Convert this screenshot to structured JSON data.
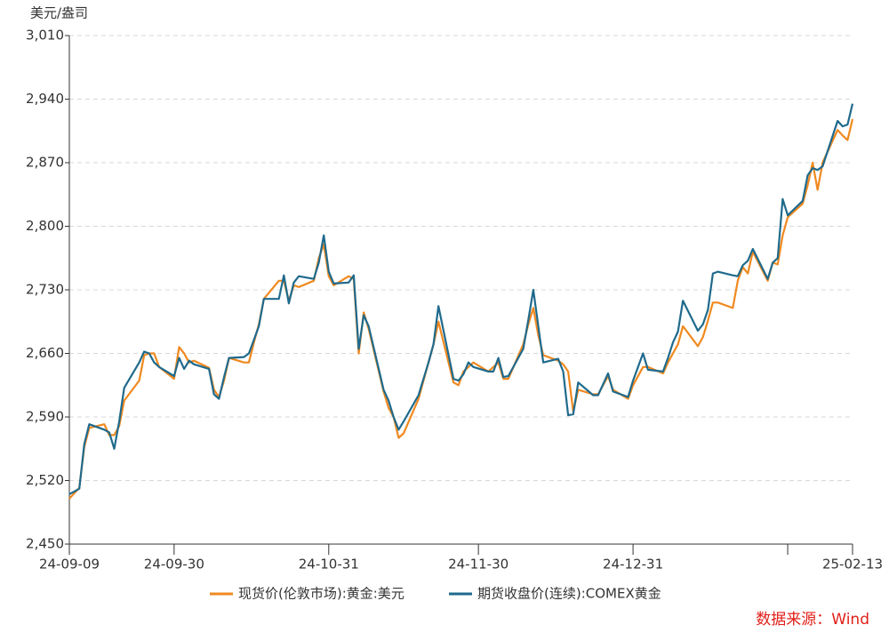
{
  "chart_data": {
    "type": "line",
    "y_unit": "美元/盎司",
    "source": "数据来源：Wind",
    "x": [
      "2024-09-09",
      "2024-09-10",
      "2024-09-11",
      "2024-09-12",
      "2024-09-13",
      "2024-09-16",
      "2024-09-17",
      "2024-09-18",
      "2024-09-19",
      "2024-09-20",
      "2024-09-23",
      "2024-09-24",
      "2024-09-25",
      "2024-09-26",
      "2024-09-27",
      "2024-09-30",
      "2024-10-01",
      "2024-10-02",
      "2024-10-03",
      "2024-10-04",
      "2024-10-07",
      "2024-10-08",
      "2024-10-09",
      "2024-10-10",
      "2024-10-11",
      "2024-10-14",
      "2024-10-15",
      "2024-10-16",
      "2024-10-17",
      "2024-10-18",
      "2024-10-21",
      "2024-10-22",
      "2024-10-23",
      "2024-10-24",
      "2024-10-25",
      "2024-10-28",
      "2024-10-29",
      "2024-10-30",
      "2024-10-31",
      "2024-11-01",
      "2024-11-04",
      "2024-11-05",
      "2024-11-06",
      "2024-11-07",
      "2024-11-08",
      "2024-11-11",
      "2024-11-12",
      "2024-11-13",
      "2024-11-14",
      "2024-11-15",
      "2024-11-18",
      "2024-11-19",
      "2024-11-20",
      "2024-11-21",
      "2024-11-22",
      "2024-11-25",
      "2024-11-26",
      "2024-11-27",
      "2024-11-28",
      "2024-11-29",
      "2024-12-02",
      "2024-12-03",
      "2024-12-04",
      "2024-12-05",
      "2024-12-06",
      "2024-12-09",
      "2024-12-10",
      "2024-12-11",
      "2024-12-12",
      "2024-12-13",
      "2024-12-16",
      "2024-12-17",
      "2024-12-18",
      "2024-12-19",
      "2024-12-20",
      "2024-12-23",
      "2024-12-24",
      "2024-12-26",
      "2024-12-27",
      "2024-12-30",
      "2024-12-31",
      "2025-01-02",
      "2025-01-03",
      "2025-01-06",
      "2025-01-07",
      "2025-01-08",
      "2025-01-09",
      "2025-01-10",
      "2025-01-13",
      "2025-01-14",
      "2025-01-15",
      "2025-01-16",
      "2025-01-17",
      "2025-01-20",
      "2025-01-21",
      "2025-01-22",
      "2025-01-23",
      "2025-01-24",
      "2025-01-27",
      "2025-01-28",
      "2025-01-29",
      "2025-01-30",
      "2025-01-31",
      "2025-02-03",
      "2025-02-04",
      "2025-02-05",
      "2025-02-06",
      "2025-02-07",
      "2025-02-10",
      "2025-02-11",
      "2025-02-12",
      "2025-02-13"
    ],
    "series": [
      {
        "name": "现货价(伦敦市场):黄金:美元",
        "color": "#f0891f",
        "values": [
          2500,
          2506,
          2512,
          2557,
          2578,
          2582,
          2570,
          2570,
          2580,
          2608,
          2630,
          2658,
          2660,
          2660,
          2645,
          2632,
          2667,
          2660,
          2650,
          2652,
          2644,
          2620,
          2612,
          2630,
          2655,
          2650,
          2650,
          2672,
          2692,
          2720,
          2740,
          2740,
          2718,
          2735,
          2733,
          2740,
          2765,
          2780,
          2745,
          2735,
          2745,
          2742,
          2660,
          2705,
          2687,
          2618,
          2600,
          2590,
          2567,
          2572,
          2610,
          2630,
          2650,
          2670,
          2695,
          2628,
          2625,
          2640,
          2645,
          2650,
          2640,
          2645,
          2650,
          2632,
          2632,
          2670,
          2692,
          2710,
          2680,
          2658,
          2652,
          2648,
          2640,
          2596,
          2620,
          2615,
          2615,
          2635,
          2620,
          2610,
          2625,
          2645,
          2645,
          2638,
          2650,
          2660,
          2670,
          2690,
          2668,
          2678,
          2696,
          2716,
          2716,
          2710,
          2740,
          2755,
          2748,
          2772,
          2740,
          2760,
          2758,
          2790,
          2810,
          2825,
          2845,
          2870,
          2840,
          2870,
          2906,
          2900,
          2895,
          2918
        ]
      },
      {
        "name": "期货收盘价(连续):COMEX黄金",
        "color": "#1f6a8c",
        "values": [
          2505,
          2508,
          2511,
          2560,
          2582,
          2576,
          2573,
          2555,
          2585,
          2622,
          2650,
          2662,
          2660,
          2650,
          2645,
          2635,
          2655,
          2643,
          2652,
          2648,
          2643,
          2615,
          2610,
          2634,
          2655,
          2656,
          2660,
          2675,
          2690,
          2720,
          2720,
          2746,
          2715,
          2738,
          2745,
          2742,
          2760,
          2790,
          2750,
          2737,
          2738,
          2746,
          2665,
          2702,
          2690,
          2620,
          2608,
          2590,
          2576,
          2585,
          2614,
          2632,
          2650,
          2670,
          2712,
          2632,
          2630,
          2637,
          2650,
          2645,
          2640,
          2640,
          2655,
          2634,
          2635,
          2665,
          2697,
          2730,
          2690,
          2650,
          2654,
          2640,
          2592,
          2593,
          2628,
          2614,
          2614,
          2638,
          2618,
          2612,
          2630,
          2660,
          2642,
          2640,
          2655,
          2672,
          2684,
          2718,
          2685,
          2692,
          2708,
          2748,
          2750,
          2746,
          2745,
          2757,
          2762,
          2775,
          2742,
          2760,
          2765,
          2830,
          2812,
          2828,
          2856,
          2864,
          2862,
          2866,
          2916,
          2910,
          2912,
          2935
        ]
      }
    ],
    "xlim": [
      "2024-09-09",
      "2025-02-13"
    ],
    "xticks": [
      {
        "value": "2024-09-09",
        "label": "24-09-09"
      },
      {
        "value": "2024-09-30",
        "label": "24-09-30"
      },
      {
        "value": "2024-10-31",
        "label": "24-10-31"
      },
      {
        "value": "2024-11-30",
        "label": "24-11-30"
      },
      {
        "value": "2024-12-31",
        "label": "24-12-31"
      },
      {
        "value": "2025-01-31",
        "label": null
      },
      {
        "value": "2025-02-13",
        "label": "25-02-13"
      }
    ],
    "ylim": [
      2450,
      3010
    ],
    "yticks": [
      {
        "value": 2450,
        "label": "2,450"
      },
      {
        "value": 2520,
        "label": "2,520"
      },
      {
        "value": 2590,
        "label": "2,590"
      },
      {
        "value": 2660,
        "label": "2,660"
      },
      {
        "value": 2730,
        "label": "2,730"
      },
      {
        "value": 2800,
        "label": "2,800"
      },
      {
        "value": 2870,
        "label": "2,870"
      },
      {
        "value": 2940,
        "label": "2,940"
      },
      {
        "value": 3010,
        "label": "3,010"
      }
    ],
    "grid": true
  }
}
